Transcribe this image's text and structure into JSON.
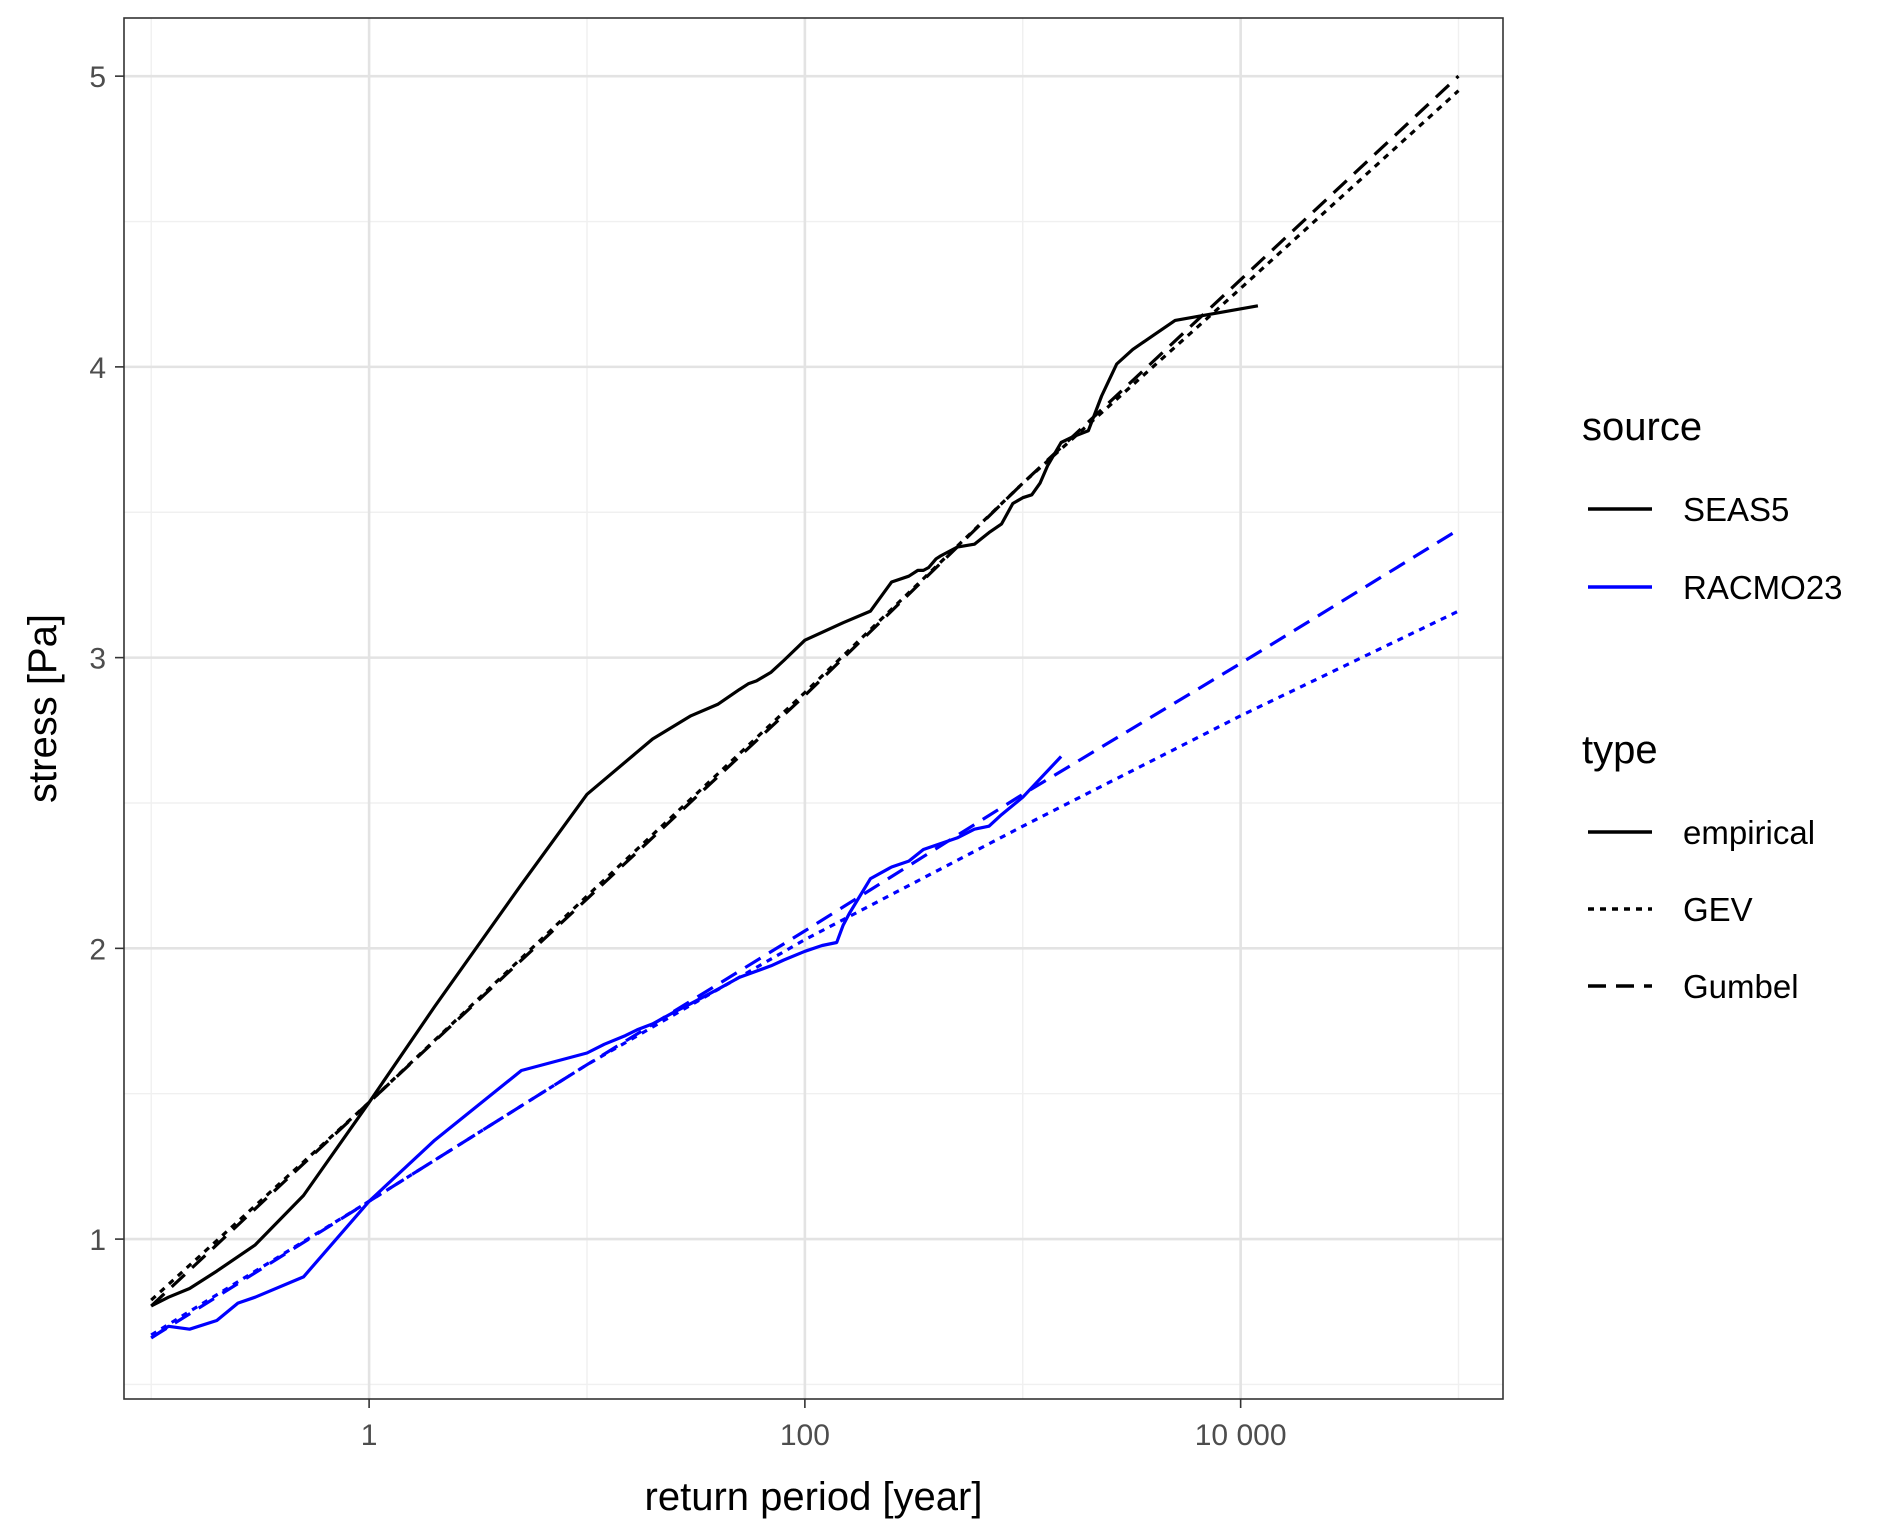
{
  "chart_data": {
    "type": "line",
    "xlabel": "return period [year]",
    "ylabel": "stress [Pa]",
    "x_scale": "log10",
    "xlim": [
      0.075,
      160000
    ],
    "ylim": [
      0.45,
      5.2
    ],
    "x_ticks": [
      {
        "value": 1,
        "label": "1"
      },
      {
        "value": 100,
        "label": "100"
      },
      {
        "value": 10000,
        "label": "10 000"
      }
    ],
    "y_ticks": [
      {
        "value": 1,
        "label": "1"
      },
      {
        "value": 2,
        "label": "2"
      },
      {
        "value": 3,
        "label": "3"
      },
      {
        "value": 4,
        "label": "4"
      },
      {
        "value": 5,
        "label": "5"
      }
    ],
    "grid": true,
    "colors": {
      "SEAS5": "#000000",
      "RACMO23": "#0000ff"
    },
    "legend": {
      "placement": "right",
      "source_title": "source",
      "source_entries": [
        "SEAS5",
        "RACMO23"
      ],
      "type_title": "type",
      "type_entries": [
        "empirical",
        "GEV",
        "Gumbel"
      ]
    },
    "series": [
      {
        "source": "SEAS5",
        "type": "empirical",
        "x": [
          0.1,
          0.12,
          0.15,
          0.2,
          0.3,
          0.5,
          1,
          2,
          5,
          10,
          20,
          30,
          40,
          50,
          55,
          60,
          70,
          80,
          100,
          150,
          200,
          250,
          300,
          330,
          350,
          370,
          400,
          420,
          500,
          600,
          700,
          800,
          900,
          1000,
          1100,
          1200,
          1300,
          1500,
          1700,
          2000,
          2300,
          2700,
          3200,
          4000,
          5000,
          12000
        ],
        "y": [
          0.77,
          0.8,
          0.83,
          0.89,
          0.98,
          1.15,
          1.47,
          1.8,
          2.22,
          2.53,
          2.72,
          2.8,
          2.84,
          2.89,
          2.91,
          2.92,
          2.95,
          2.99,
          3.06,
          3.12,
          3.16,
          3.26,
          3.28,
          3.3,
          3.3,
          3.31,
          3.34,
          3.35,
          3.38,
          3.39,
          3.43,
          3.46,
          3.53,
          3.55,
          3.56,
          3.6,
          3.66,
          3.74,
          3.76,
          3.78,
          3.9,
          4.01,
          4.06,
          4.11,
          4.16,
          4.21
        ]
      },
      {
        "source": "SEAS5",
        "type": "GEV",
        "x": [
          0.1,
          1,
          10,
          100,
          1000,
          10000,
          100000
        ],
        "y": [
          0.79,
          1.47,
          2.18,
          2.88,
          3.6,
          4.27,
          4.95
        ]
      },
      {
        "source": "SEAS5",
        "type": "Gumbel",
        "x": [
          0.1,
          1,
          10,
          100,
          1000,
          10000,
          100000
        ],
        "y": [
          0.77,
          1.47,
          2.17,
          2.87,
          3.6,
          4.3,
          5.0
        ]
      },
      {
        "source": "RACMO23",
        "type": "empirical",
        "x": [
          0.1,
          0.12,
          0.15,
          0.2,
          0.25,
          0.3,
          0.5,
          1,
          2,
          5,
          10,
          12,
          15,
          17,
          20,
          25,
          30,
          40,
          50,
          70,
          80,
          100,
          120,
          140,
          150,
          160,
          200,
          250,
          300,
          350,
          500,
          600,
          700,
          800,
          1000,
          1500
        ],
        "y": [
          0.66,
          0.7,
          0.69,
          0.72,
          0.78,
          0.8,
          0.87,
          1.13,
          1.34,
          1.58,
          1.64,
          1.67,
          1.7,
          1.72,
          1.74,
          1.78,
          1.81,
          1.86,
          1.9,
          1.94,
          1.96,
          1.99,
          2.01,
          2.02,
          2.08,
          2.12,
          2.24,
          2.28,
          2.3,
          2.34,
          2.38,
          2.41,
          2.42,
          2.46,
          2.52,
          2.66
        ]
      },
      {
        "source": "RACMO23",
        "type": "GEV",
        "x": [
          0.1,
          1,
          10,
          100,
          1000,
          10000,
          100000
        ],
        "y": [
          0.67,
          1.13,
          1.6,
          2.03,
          2.42,
          2.8,
          3.16
        ]
      },
      {
        "source": "RACMO23",
        "type": "Gumbel",
        "x": [
          0.1,
          1,
          10,
          100,
          1000,
          10000,
          100000
        ],
        "y": [
          0.66,
          1.13,
          1.6,
          2.06,
          2.53,
          2.98,
          3.44
        ]
      }
    ]
  }
}
